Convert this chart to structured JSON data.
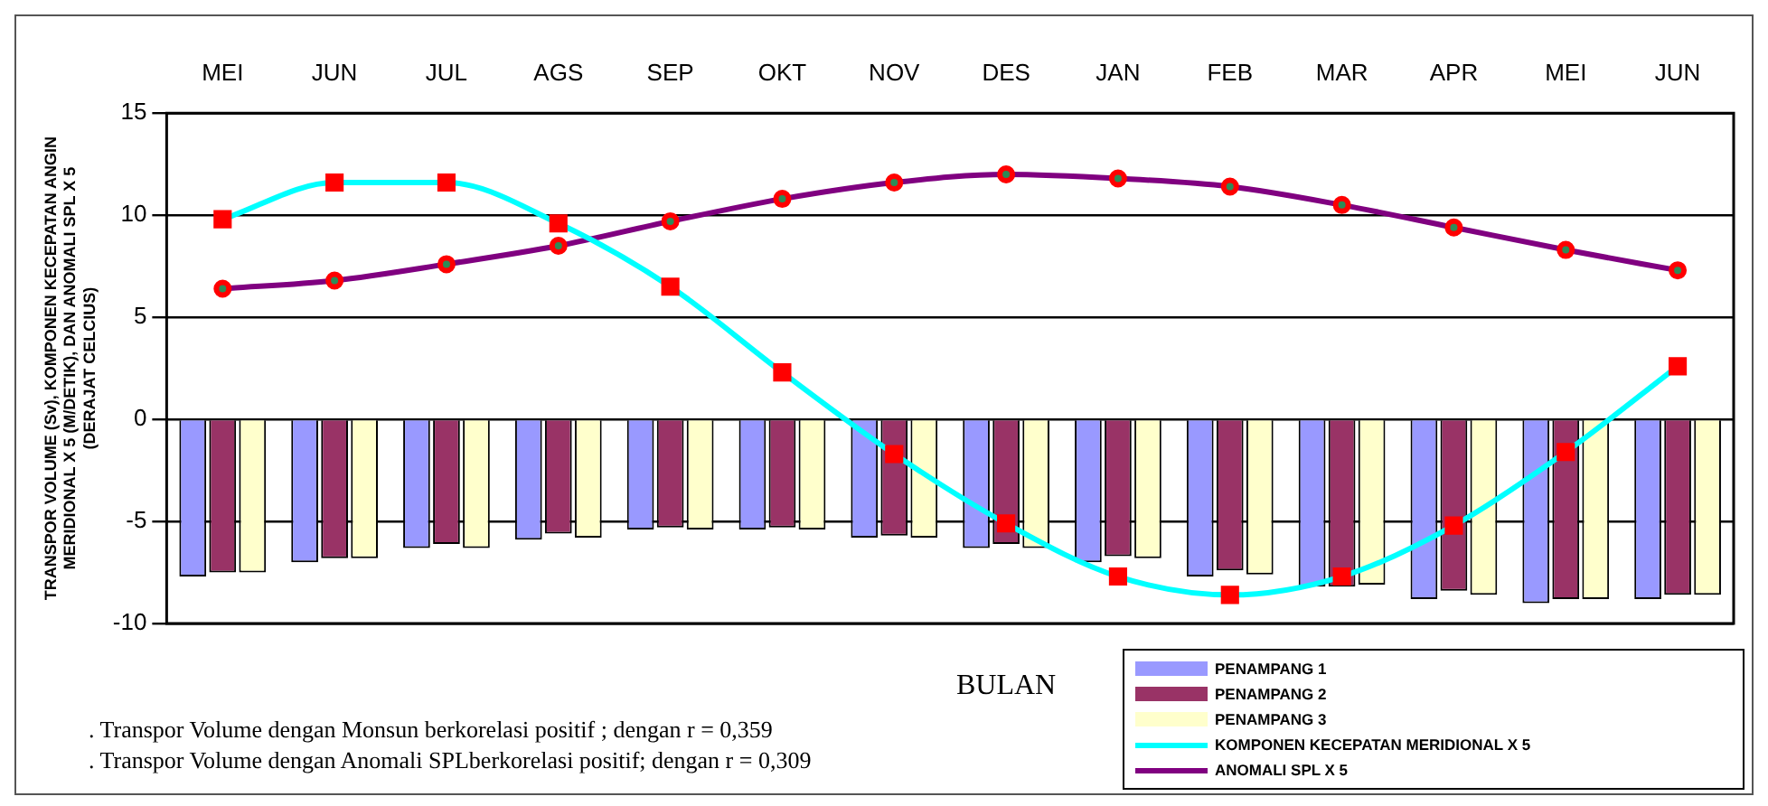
{
  "chart_data": {
    "type": "bar",
    "xlabel": "BULAN",
    "ylabel": "TRANSPOR VOLUME (Sv), KOMPONEN KECEPATAN ANGIN MERIDIONAL X 5 (M/DETIK), DAN ANOMALI SPL X 5 (DERAJAT CELCIUS)",
    "categories": [
      "MEI",
      "JUN",
      "JUL",
      "AGS",
      "SEP",
      "OKT",
      "NOV",
      "DES",
      "JAN",
      "FEB",
      "MAR",
      "APR",
      "MEI",
      "JUN"
    ],
    "series": [
      {
        "name": "PENAMPANG 1",
        "color": "#9999ff",
        "values": [
          -7.7,
          -7.0,
          -6.3,
          -5.9,
          -5.4,
          -5.4,
          -5.8,
          -6.3,
          -7.0,
          -7.7,
          -8.2,
          -8.8,
          -9.0,
          -8.8
        ]
      },
      {
        "name": "PENAMPANG 2",
        "color": "#993366",
        "values": [
          -7.5,
          -6.8,
          -6.1,
          -5.6,
          -5.3,
          -5.3,
          -5.7,
          -6.1,
          -6.7,
          -7.4,
          -8.2,
          -8.4,
          -8.8,
          -8.6
        ]
      },
      {
        "name": "PENAMPANG 3",
        "color": "#ffffcc",
        "values": [
          -7.5,
          -6.8,
          -6.3,
          -5.8,
          -5.4,
          -5.4,
          -5.8,
          -6.3,
          -6.8,
          -7.6,
          -8.1,
          -8.6,
          -8.8,
          -8.6
        ]
      },
      {
        "name": "KOMPONEN KECEPATAN MERIDIONAL X 5",
        "type": "line",
        "color": "#00ffff",
        "marker": "square",
        "values": [
          9.8,
          11.6,
          11.6,
          9.6,
          6.5,
          2.3,
          -1.7,
          -5.1,
          -7.7,
          -8.6,
          -7.7,
          -5.2,
          -1.6,
          2.6
        ]
      },
      {
        "name": "ANOMALI SPL X 5",
        "type": "line",
        "color": "#800080",
        "marker": "circle",
        "values": [
          6.4,
          6.8,
          7.6,
          8.5,
          9.7,
          10.8,
          11.6,
          12.0,
          11.8,
          11.4,
          10.5,
          9.4,
          8.3,
          7.3
        ]
      }
    ],
    "ylim": [
      -10,
      15
    ],
    "yticks": [
      -10,
      -5,
      0,
      5,
      10,
      15
    ],
    "grid": "y",
    "legend": "bottom right",
    "annotations": [
      ". Transpor Volume dengan Monsun  berkorelasi positif ; dengan r =  0,359",
      ". Transpor Volume dengan Anomali SPLberkorelasi positif; dengan r = 0,309"
    ]
  }
}
